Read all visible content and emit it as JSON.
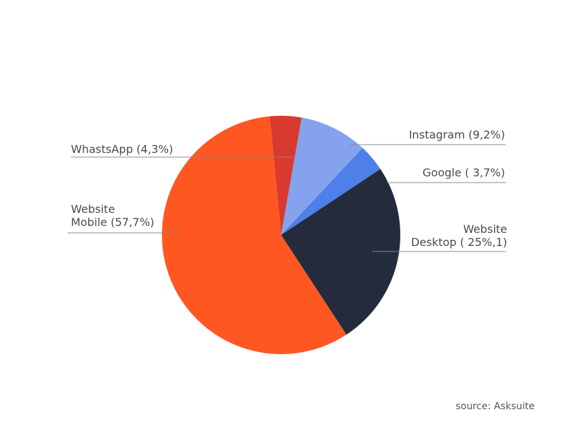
{
  "chart_data": {
    "type": "pie",
    "start_angle_deg": -5.5,
    "direction": "clockwise",
    "slices": [
      {
        "key": "whatsapp",
        "lines": [
          "WhastsApp (4,3%)"
        ],
        "value": 4.3,
        "color": "#D93A2F",
        "label_side": "left"
      },
      {
        "key": "instagram",
        "lines": [
          "Instagram (9,2%)"
        ],
        "value": 9.2,
        "color": "#85A2EE",
        "label_side": "right"
      },
      {
        "key": "google",
        "lines": [
          "Google ( 3,7%)"
        ],
        "value": 3.7,
        "color": "#4F7FE8",
        "label_side": "right"
      },
      {
        "key": "desktop",
        "lines": [
          "Website",
          "Desktop ( 25%,1)"
        ],
        "value": 25.1,
        "color": "#232B3D",
        "label_side": "right"
      },
      {
        "key": "mobile",
        "lines": [
          "Website",
          "Mobile (57,7%)"
        ],
        "value": 57.7,
        "color": "#FF5722",
        "label_side": "left"
      }
    ]
  },
  "source": {
    "text": "source: Asksuite"
  }
}
